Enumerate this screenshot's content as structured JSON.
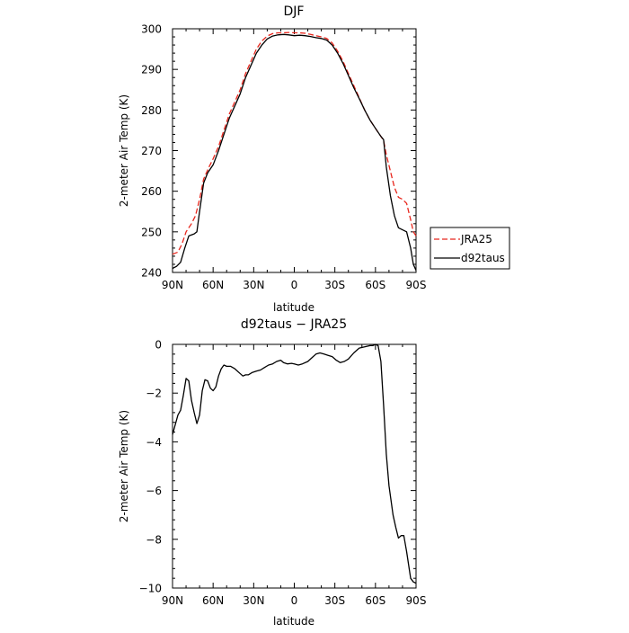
{
  "chart_data": [
    {
      "type": "line",
      "title": "DJF",
      "xlabel": "latitude",
      "ylabel": "2-meter Air Temp (K)",
      "xlim": [
        90,
        -90
      ],
      "ylim": [
        240,
        300
      ],
      "xticks": [
        90,
        60,
        30,
        0,
        -30,
        -60,
        -90
      ],
      "xticklabels": [
        "90N",
        "60N",
        "30N",
        "0",
        "30S",
        "60S",
        "90S"
      ],
      "yticks": [
        240,
        250,
        260,
        270,
        280,
        290,
        300
      ],
      "grid": false,
      "legend": "outside-right",
      "series": [
        {
          "name": "JRA25",
          "color": "#e8261c",
          "dash": "dashed",
          "points": [
            [
              90,
              244.5
            ],
            [
              86,
              245
            ],
            [
              83,
              247
            ],
            [
              80,
              250
            ],
            [
              76,
              252
            ],
            [
              73,
              254
            ],
            [
              70,
              258
            ],
            [
              67,
              263
            ],
            [
              63,
              266
            ],
            [
              60,
              268
            ],
            [
              56,
              271
            ],
            [
              52,
              275
            ],
            [
              48,
              279
            ],
            [
              44,
              282
            ],
            [
              40,
              285
            ],
            [
              36,
              289
            ],
            [
              32,
              292
            ],
            [
              28,
              295
            ],
            [
              24,
              297
            ],
            [
              20,
              298.2
            ],
            [
              16,
              298.8
            ],
            [
              12,
              299
            ],
            [
              8,
              299
            ],
            [
              4,
              299.1
            ],
            [
              0,
              299
            ],
            [
              -4,
              299
            ],
            [
              -8,
              298.9
            ],
            [
              -12,
              298.6
            ],
            [
              -16,
              298.3
            ],
            [
              -20,
              298
            ],
            [
              -24,
              297.6
            ],
            [
              -28,
              296.5
            ],
            [
              -32,
              294.5
            ],
            [
              -36,
              292
            ],
            [
              -40,
              289
            ],
            [
              -44,
              286
            ],
            [
              -48,
              283
            ],
            [
              -52,
              280
            ],
            [
              -56,
              277.5
            ],
            [
              -60,
              275.5
            ],
            [
              -64,
              273.5
            ],
            [
              -66,
              272.5
            ],
            [
              -68,
              269
            ],
            [
              -71,
              265
            ],
            [
              -74,
              261
            ],
            [
              -77,
              258.5
            ],
            [
              -80,
              258
            ],
            [
              -83,
              257
            ],
            [
              -86,
              253
            ],
            [
              -88,
              250
            ],
            [
              -90,
              249
            ]
          ]
        },
        {
          "name": "d92taus",
          "color": "#000000",
          "dash": "solid",
          "points": [
            [
              90,
              241
            ],
            [
              87,
              241.5
            ],
            [
              84,
              242.5
            ],
            [
              81,
              246
            ],
            [
              78,
              249
            ],
            [
              74,
              249.5
            ],
            [
              72,
              250
            ],
            [
              70,
              255
            ],
            [
              67,
              262
            ],
            [
              64,
              264.5
            ],
            [
              60,
              266.5
            ],
            [
              56,
              270
            ],
            [
              52,
              274
            ],
            [
              48,
              278
            ],
            [
              44,
              281
            ],
            [
              40,
              284
            ],
            [
              36,
              288
            ],
            [
              32,
              291
            ],
            [
              28,
              294
            ],
            [
              24,
              296
            ],
            [
              20,
              297.5
            ],
            [
              16,
              298.2
            ],
            [
              12,
              298.5
            ],
            [
              8,
              298.6
            ],
            [
              4,
              298.5
            ],
            [
              0,
              298.3
            ],
            [
              -4,
              298.4
            ],
            [
              -8,
              298.3
            ],
            [
              -12,
              298.1
            ],
            [
              -16,
              297.8
            ],
            [
              -20,
              297.6
            ],
            [
              -24,
              297.2
            ],
            [
              -28,
              296
            ],
            [
              -32,
              294
            ],
            [
              -36,
              291.5
            ],
            [
              -40,
              288.5
            ],
            [
              -44,
              285.5
            ],
            [
              -48,
              282.8
            ],
            [
              -52,
              280
            ],
            [
              -56,
              277.5
            ],
            [
              -60,
              275.5
            ],
            [
              -64,
              273.5
            ],
            [
              -66,
              272.7
            ],
            [
              -68,
              266
            ],
            [
              -71,
              259
            ],
            [
              -74,
              254
            ],
            [
              -77,
              251
            ],
            [
              -80,
              250.5
            ],
            [
              -83,
              250
            ],
            [
              -86,
              246
            ],
            [
              -88,
              242
            ],
            [
              -90,
              240.5
            ]
          ]
        }
      ]
    },
    {
      "type": "line",
      "title": "d92taus − JRA25",
      "xlabel": "latitude",
      "ylabel": "2-meter Air Temp (K)",
      "xlim": [
        90,
        -90
      ],
      "ylim": [
        -10,
        0
      ],
      "xticks": [
        90,
        60,
        30,
        0,
        -30,
        -60,
        -90
      ],
      "xticklabels": [
        "90N",
        "60N",
        "30N",
        "0",
        "30S",
        "60S",
        "90S"
      ],
      "yticks": [
        -10,
        -8,
        -6,
        -4,
        -2,
        0
      ],
      "grid": false,
      "series": [
        {
          "color": "#000000",
          "points": [
            [
              90,
              -3.7
            ],
            [
              88,
              -3.3
            ],
            [
              86,
              -2.9
            ],
            [
              84,
              -2.7
            ],
            [
              82,
              -2.1
            ],
            [
              80,
              -1.4
            ],
            [
              78,
              -1.5
            ],
            [
              76,
              -2.3
            ],
            [
              74,
              -2.8
            ],
            [
              72,
              -3.25
            ],
            [
              70,
              -2.9
            ],
            [
              68,
              -1.9
            ],
            [
              66,
              -1.45
            ],
            [
              64,
              -1.5
            ],
            [
              62,
              -1.8
            ],
            [
              60,
              -1.9
            ],
            [
              58,
              -1.75
            ],
            [
              56,
              -1.3
            ],
            [
              54,
              -1.0
            ],
            [
              52,
              -0.85
            ],
            [
              50,
              -0.9
            ],
            [
              47,
              -0.9
            ],
            [
              44,
              -1.0
            ],
            [
              41,
              -1.15
            ],
            [
              38,
              -1.3
            ],
            [
              36,
              -1.25
            ],
            [
              34,
              -1.25
            ],
            [
              31,
              -1.15
            ],
            [
              28,
              -1.1
            ],
            [
              25,
              -1.05
            ],
            [
              22,
              -0.95
            ],
            [
              19,
              -0.85
            ],
            [
              16,
              -0.8
            ],
            [
              13,
              -0.7
            ],
            [
              10,
              -0.65
            ],
            [
              8,
              -0.75
            ],
            [
              5,
              -0.8
            ],
            [
              2,
              -0.78
            ],
            [
              0,
              -0.8
            ],
            [
              -3,
              -0.85
            ],
            [
              -6,
              -0.8
            ],
            [
              -10,
              -0.7
            ],
            [
              -13,
              -0.55
            ],
            [
              -16,
              -0.4
            ],
            [
              -19,
              -0.35
            ],
            [
              -22,
              -0.4
            ],
            [
              -25,
              -0.45
            ],
            [
              -28,
              -0.5
            ],
            [
              -31,
              -0.65
            ],
            [
              -34,
              -0.75
            ],
            [
              -37,
              -0.7
            ],
            [
              -40,
              -0.6
            ],
            [
              -44,
              -0.35
            ],
            [
              -48,
              -0.15
            ],
            [
              -52,
              -0.1
            ],
            [
              -56,
              -0.05
            ],
            [
              -58,
              -0.05
            ],
            [
              -60,
              0
            ],
            [
              -62,
              -0.05
            ],
            [
              -64,
              -0.7
            ],
            [
              -66,
              -2.5
            ],
            [
              -68,
              -4.5
            ],
            [
              -70,
              -5.8
            ],
            [
              -73,
              -7.0
            ],
            [
              -75,
              -7.5
            ],
            [
              -77,
              -7.95
            ],
            [
              -79,
              -7.85
            ],
            [
              -81,
              -7.85
            ],
            [
              -83,
              -8.5
            ],
            [
              -86,
              -9.6
            ],
            [
              -88,
              -9.75
            ],
            [
              -90,
              -9.8
            ]
          ]
        }
      ]
    }
  ]
}
